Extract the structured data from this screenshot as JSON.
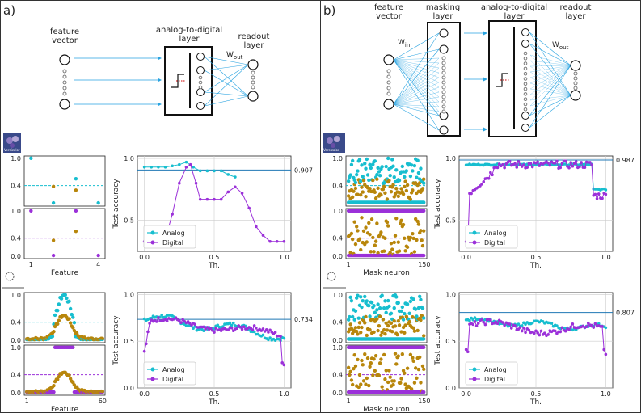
{
  "panels": [
    {
      "label": "a)",
      "layers": [
        "feature\nvector",
        "analog-to-digital\nlayer",
        "readout\nlayer"
      ],
      "w_out": "W",
      "w_out_sub": "out"
    },
    {
      "label": "b)",
      "layers": [
        "feature\nvector",
        "masking\nlayer",
        "analog-to-digital\nlayer",
        "readout\nlayer"
      ],
      "w_in": "W",
      "w_in_sub": "in",
      "w_out": "W",
      "w_out_sub": "out"
    }
  ],
  "icons": [
    "Versicolor",
    ""
  ],
  "colors": {
    "analog": "#17becf",
    "digital": "#9b30d9",
    "scatter_brown": "#b8860b",
    "hline": "#1f77b4"
  },
  "chart_data": [
    {
      "id": "a-iris-scatter",
      "type": "scatter",
      "xlabel": "Feature",
      "xticks": [
        "1",
        "4"
      ],
      "xlim": [
        0.7,
        4.3
      ],
      "top": {
        "yticks": [
          "1.0",
          "0.4"
        ],
        "threshold": 0.4,
        "points": [
          [
            1,
            1.0,
            "c"
          ],
          [
            2,
            0.38,
            "b"
          ],
          [
            2,
            0.02,
            "c"
          ],
          [
            3,
            0.55,
            "c"
          ],
          [
            3,
            0.3,
            "b"
          ],
          [
            4,
            0.02,
            "c"
          ]
        ]
      },
      "bottom": {
        "yticks": [
          "1.0",
          "0.4",
          "0.0"
        ],
        "threshold": 0.4,
        "points": [
          [
            1,
            1.0,
            "p"
          ],
          [
            2,
            0.35,
            "b"
          ],
          [
            2,
            0.02,
            "p"
          ],
          [
            3,
            1.0,
            "p"
          ],
          [
            3,
            0.55,
            "b"
          ],
          [
            4,
            0.02,
            "p"
          ]
        ]
      }
    },
    {
      "id": "a-iris-accuracy",
      "type": "line",
      "xlabel": "Th.",
      "ylabel": "Test accuracy",
      "xticks": [
        "0.0",
        "0.5",
        "1.0"
      ],
      "yticks": [
        "1.0",
        "0.5"
      ],
      "xlim": [
        -0.05,
        1.05
      ],
      "ylim": [
        0.25,
        1.02
      ],
      "hline": 0.907,
      "hline_label": "0.907",
      "legend": [
        "Analog",
        "Digital"
      ],
      "analog": {
        "x": [
          0,
          0.05,
          0.1,
          0.15,
          0.2,
          0.25,
          0.3,
          0.35,
          0.4,
          0.45,
          0.5,
          0.55,
          0.6,
          0.65
        ],
        "y": [
          0.93,
          0.93,
          0.93,
          0.93,
          0.94,
          0.95,
          0.97,
          0.93,
          0.9,
          0.9,
          0.9,
          0.9,
          0.87,
          0.85
        ]
      },
      "digital": {
        "x": [
          0,
          0.05,
          0.1,
          0.15,
          0.2,
          0.25,
          0.3,
          0.33,
          0.37,
          0.4,
          0.45,
          0.5,
          0.55,
          0.6,
          0.65,
          0.7,
          0.75,
          0.8,
          0.85,
          0.9,
          0.95,
          1.0
        ],
        "y": [
          0.33,
          0.33,
          0.33,
          0.35,
          0.55,
          0.8,
          0.93,
          0.95,
          0.8,
          0.67,
          0.67,
          0.67,
          0.67,
          0.73,
          0.77,
          0.72,
          0.6,
          0.45,
          0.38,
          0.33,
          0.33,
          0.33
        ]
      }
    },
    {
      "id": "a-sonar-scatter",
      "type": "scatter",
      "xlabel": "Feature",
      "xticks": [
        "1",
        "60"
      ],
      "xlim": [
        -1,
        62
      ],
      "top": {
        "yticks": [
          "1.0",
          "0.4",
          "0.0"
        ],
        "threshold": 0.4
      },
      "bottom": {
        "yticks": [
          "1.0",
          "0.4",
          "0.0"
        ],
        "threshold": 0.4
      }
    },
    {
      "id": "a-sonar-accuracy",
      "type": "line",
      "xlabel": "Th.",
      "ylabel": "Test accuracy",
      "xticks": [
        "0.0",
        "0.5",
        "1.0"
      ],
      "yticks": [
        "1.0",
        "0.5",
        "0.0"
      ],
      "xlim": [
        -0.05,
        1.05
      ],
      "ylim": [
        0,
        1.02
      ],
      "hline": 0.734,
      "hline_label": "0.734",
      "legend": [
        "Analog",
        "Digital"
      ]
    },
    {
      "id": "b-iris-scatter",
      "type": "scatter",
      "xlabel": "Mask neuron",
      "xticks": [
        "1",
        "150"
      ],
      "xlim": [
        -4,
        155
      ],
      "top": {
        "yticks": [
          "1.0",
          "0.4"
        ],
        "threshold": 0.4
      },
      "bottom": {
        "yticks": [
          "1.0",
          "0.4",
          "0.0"
        ],
        "threshold": 0.4
      }
    },
    {
      "id": "b-iris-accuracy",
      "type": "line",
      "xlabel": "Th.",
      "ylabel": "Test accuracy",
      "xticks": [
        "0.0",
        "0.5",
        "1.0"
      ],
      "yticks": [
        "1.0",
        "0.5"
      ],
      "xlim": [
        -0.05,
        1.05
      ],
      "ylim": [
        0.25,
        1.02
      ],
      "hline": 0.987,
      "hline_label": "0.987",
      "legend": [
        "Analog",
        "Digital"
      ]
    },
    {
      "id": "b-sonar-scatter",
      "type": "scatter",
      "xlabel": "Mask neuron",
      "xticks": [
        "1",
        "150"
      ],
      "xlim": [
        -4,
        155
      ],
      "top": {
        "yticks": [
          "1.0",
          "0.4",
          "0.0"
        ],
        "threshold": 0.4
      },
      "bottom": {
        "yticks": [
          "1.0",
          "0.4",
          "0.0"
        ],
        "threshold": 0.4
      }
    },
    {
      "id": "b-sonar-accuracy",
      "type": "line",
      "xlabel": "Th.",
      "ylabel": "Test accuracy",
      "xticks": [
        "0.0",
        "0.5",
        "1.0"
      ],
      "yticks": [
        "1.0",
        "0.5",
        "0.0"
      ],
      "xlim": [
        -0.05,
        1.05
      ],
      "ylim": [
        0,
        1.02
      ],
      "hline": 0.807,
      "hline_label": "0.807",
      "legend": [
        "Analog",
        "Digital"
      ]
    }
  ]
}
